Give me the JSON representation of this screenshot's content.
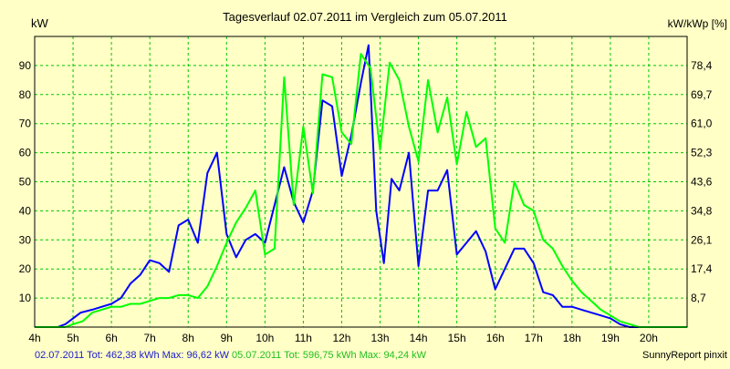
{
  "chart_data": {
    "type": "line",
    "title": "Tagesverlauf 02.07.2011 im Vergleich zum 05.07.2011",
    "ylabel_left": "kW",
    "ylabel_right": "kW/kWp [%]",
    "x_tick_labels": [
      "4h",
      "5h",
      "6h",
      "7h",
      "8h",
      "9h",
      "10h",
      "11h",
      "12h",
      "13h",
      "14h",
      "15h",
      "16h",
      "17h",
      "18h",
      "19h",
      "20h"
    ],
    "xlim": [
      4,
      21
    ],
    "ylim": [
      0,
      100
    ],
    "y_ticks_left": [
      "10",
      "20",
      "30",
      "40",
      "50",
      "60",
      "70",
      "80",
      "90"
    ],
    "y_ticks_right": [
      "8,7",
      "17,4",
      "26,1",
      "34,8",
      "43,6",
      "52,3",
      "61,0",
      "69,7",
      "78,4"
    ],
    "grid": true,
    "colors": {
      "background": "#ffffc6",
      "grid": "#00c800",
      "series_1": "#0000ff",
      "series_2": "#00ff00"
    },
    "series": [
      {
        "name": "02.07.2011",
        "color": "#0000ff",
        "x": [
          4.0,
          4.4,
          4.6,
          4.8,
          5.0,
          5.2,
          5.5,
          5.75,
          6.0,
          6.25,
          6.5,
          6.75,
          7.0,
          7.25,
          7.5,
          7.75,
          8.0,
          8.25,
          8.5,
          8.75,
          9.0,
          9.25,
          9.5,
          9.75,
          10.0,
          10.25,
          10.5,
          10.75,
          11.0,
          11.25,
          11.5,
          11.75,
          12.0,
          12.25,
          12.5,
          12.7,
          12.9,
          13.1,
          13.3,
          13.5,
          13.75,
          14.0,
          14.25,
          14.5,
          14.75,
          15.0,
          15.25,
          15.5,
          15.75,
          16.0,
          16.25,
          16.5,
          16.75,
          17.0,
          17.25,
          17.5,
          17.75,
          18.0,
          18.25,
          18.5,
          18.75,
          19.0,
          19.25,
          19.5,
          19.75,
          20.0,
          20.25,
          20.5,
          20.75,
          21.0
        ],
        "y": [
          0,
          0,
          0,
          1,
          3,
          5,
          6,
          7,
          8,
          10,
          15,
          18,
          23,
          22,
          19,
          35,
          37,
          29,
          53,
          60,
          32,
          24,
          30,
          32,
          29,
          42,
          55,
          43,
          36,
          47,
          78,
          76,
          52,
          66,
          84,
          97,
          40,
          22,
          51,
          47,
          60,
          21,
          47,
          47,
          54,
          25,
          29,
          33,
          26,
          13,
          20,
          27,
          27,
          22,
          12,
          11,
          7,
          7,
          6,
          5,
          4,
          3,
          1,
          0,
          0,
          0,
          0,
          0,
          0,
          0
        ]
      },
      {
        "name": "05.07.2011",
        "color": "#00ff00",
        "x": [
          4.0,
          4.6,
          4.8,
          5.0,
          5.25,
          5.5,
          5.75,
          6.0,
          6.25,
          6.5,
          6.75,
          7.0,
          7.25,
          7.5,
          7.75,
          8.0,
          8.25,
          8.5,
          8.75,
          9.0,
          9.25,
          9.5,
          9.75,
          10.0,
          10.25,
          10.5,
          10.75,
          11.0,
          11.25,
          11.5,
          11.75,
          12.0,
          12.25,
          12.5,
          12.75,
          13.0,
          13.25,
          13.5,
          13.75,
          14.0,
          14.25,
          14.5,
          14.75,
          15.0,
          15.25,
          15.5,
          15.75,
          16.0,
          16.25,
          16.5,
          16.75,
          17.0,
          17.25,
          17.5,
          17.75,
          18.0,
          18.25,
          18.5,
          18.75,
          19.0,
          19.25,
          19.5,
          19.75,
          20.0,
          20.25,
          20.5,
          20.75,
          21.0
        ],
        "y": [
          0,
          0,
          0,
          1,
          2,
          5,
          6,
          7,
          7,
          8,
          8,
          9,
          10,
          10,
          11,
          11,
          10,
          14,
          21,
          29,
          36,
          41,
          47,
          25,
          27,
          86,
          42,
          69,
          46,
          87,
          86,
          67,
          63,
          94,
          89,
          61,
          91,
          85,
          69,
          57,
          85,
          67,
          79,
          56,
          74,
          62,
          65,
          34,
          29,
          50,
          42,
          40,
          30,
          27,
          21,
          16,
          12,
          9,
          6,
          4,
          2,
          1,
          0,
          0,
          0,
          0,
          0,
          0
        ]
      }
    ]
  },
  "footer": {
    "series1_text": "02.07.2011 Tot: 462,38 kWh Max: 96,62 kW",
    "series2_text": "05.07.2011 Tot: 596,75 kWh Max: 94,24 kW",
    "credit": "SunnyReport pinxit"
  }
}
